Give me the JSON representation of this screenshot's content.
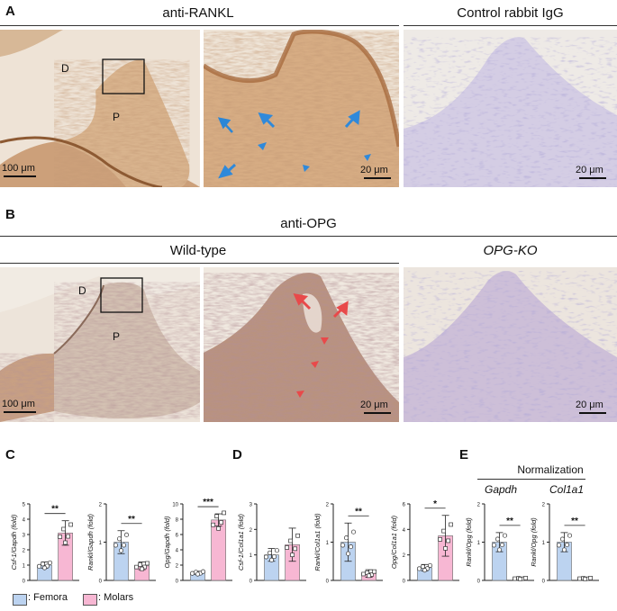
{
  "panel_labels": {
    "A": "A",
    "B": "B",
    "C": "C",
    "D": "D",
    "E": "E"
  },
  "sectionA": {
    "left_header": "anti-RANKL",
    "right_header": "Control rabbit IgG"
  },
  "sectionB": {
    "header": "anti-OPG",
    "left_header": "Wild-type",
    "right_header": "OPG-KO"
  },
  "micro": {
    "labels": {
      "d": "D",
      "p": "P"
    },
    "scalebars": {
      "low": "100 μm",
      "high": "20 μm"
    }
  },
  "legend": {
    "femora": ": Femora",
    "molars": ": Molars",
    "femora_color": "#bcd3f0",
    "molars_color": "#f7b7d3"
  },
  "normalization": {
    "title": "Normalization",
    "gapdh": "Gapdh",
    "col1a1": "Col1a1"
  },
  "chart_data": [
    {
      "type": "bar",
      "id": "c1",
      "ylabel": "Csf-1/Gapdh (fold)",
      "categories": [
        "Femora",
        "Molars"
      ],
      "values": [
        1.0,
        3.1
      ],
      "errors": [
        0.2,
        0.8
      ],
      "ylim": [
        0,
        5
      ],
      "yticks": [
        "0",
        "1",
        "2",
        "3",
        "4",
        "5"
      ],
      "significance": "**"
    },
    {
      "type": "bar",
      "id": "c2",
      "ylabel": "Rankl/Gapdh (fold)",
      "categories": [
        "Femora",
        "Molars"
      ],
      "values": [
        1.0,
        0.38
      ],
      "errors": [
        0.3,
        0.1
      ],
      "ylim": [
        0,
        2
      ],
      "yticks": [
        "0",
        "1",
        "2"
      ],
      "significance": "**"
    },
    {
      "type": "bar",
      "id": "c3",
      "ylabel": "Opg/Gapdh (fold)",
      "categories": [
        "Femora",
        "Molars"
      ],
      "values": [
        1.0,
        7.9
      ],
      "errors": [
        0.2,
        0.8
      ],
      "ylim": [
        0,
        10
      ],
      "yticks": [
        "0",
        "2",
        "4",
        "6",
        "8",
        "10"
      ],
      "significance": "***"
    },
    {
      "type": "bar",
      "id": "d1",
      "ylabel": "Csf-1/Col1a1 (fold)",
      "categories": [
        "Femora",
        "Molars"
      ],
      "values": [
        1.0,
        1.4
      ],
      "errors": [
        0.25,
        0.65
      ],
      "ylim": [
        0,
        3
      ],
      "yticks": [
        "0",
        "1",
        "2",
        "3"
      ],
      "significance": ""
    },
    {
      "type": "bar",
      "id": "d2",
      "ylabel": "Rankl/Col1a1 (fold)",
      "categories": [
        "Femora",
        "Molars"
      ],
      "values": [
        1.0,
        0.18
      ],
      "errors": [
        0.5,
        0.1
      ],
      "ylim": [
        0,
        2
      ],
      "yticks": [
        "0",
        "1",
        "2"
      ],
      "significance": "**"
    },
    {
      "type": "bar",
      "id": "d3",
      "ylabel": "Opg/Col1a1 (fold)",
      "categories": [
        "Femora",
        "Molars"
      ],
      "values": [
        1.0,
        3.5
      ],
      "errors": [
        0.25,
        1.6
      ],
      "ylim": [
        0,
        6
      ],
      "yticks": [
        "0",
        "2",
        "4",
        "6"
      ],
      "significance": "*"
    },
    {
      "type": "bar",
      "id": "e1",
      "ylabel": "Rankl/Opg (fold)",
      "categories": [
        "Femora",
        "Molars"
      ],
      "values": [
        1.0,
        0.05
      ],
      "errors": [
        0.25,
        0.02
      ],
      "ylim": [
        0,
        2
      ],
      "yticks": [
        "0",
        "1",
        "2"
      ],
      "significance": "**"
    },
    {
      "type": "bar",
      "id": "e2",
      "ylabel": "Rankl/Opg (fold)",
      "categories": [
        "Femora",
        "Molars"
      ],
      "values": [
        1.0,
        0.05
      ],
      "errors": [
        0.25,
        0.02
      ],
      "ylim": [
        0,
        2
      ],
      "yticks": [
        "0",
        "1",
        "2"
      ],
      "significance": "**"
    }
  ]
}
